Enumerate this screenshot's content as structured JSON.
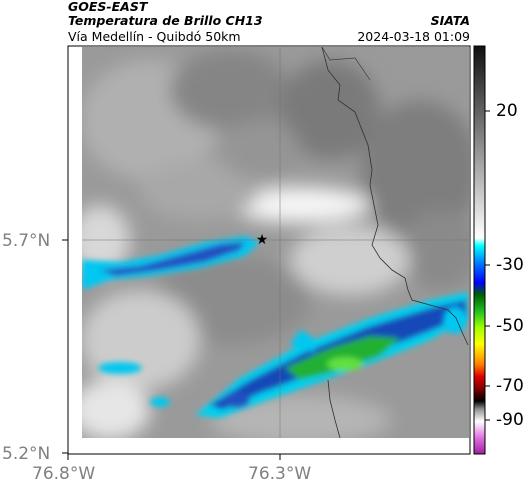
{
  "header": {
    "satellite": "GOES-EAST",
    "product": "Temperatura de Brillo CH13",
    "region": "Vía Medellín - Quibdó 50km",
    "agency": "SIATA",
    "datetime": "2024-03-18 01:09"
  },
  "map": {
    "y_ticks": [
      "5.7°N",
      "5.2°N"
    ],
    "x_ticks": [
      "76.8°W",
      "76.3°W"
    ],
    "marker": "star-marker"
  },
  "colorbar": {
    "labels": [
      "20",
      "-30",
      "-50",
      "-70",
      "-90"
    ],
    "colors": {
      "warm_gray": "#808080",
      "cyan": "#00d0f0",
      "blue": "#1040b0",
      "green": "#20c020",
      "yellow": "#e8f000",
      "red": "#d01010",
      "black": "#000000",
      "magenta": "#c040c0"
    }
  }
}
